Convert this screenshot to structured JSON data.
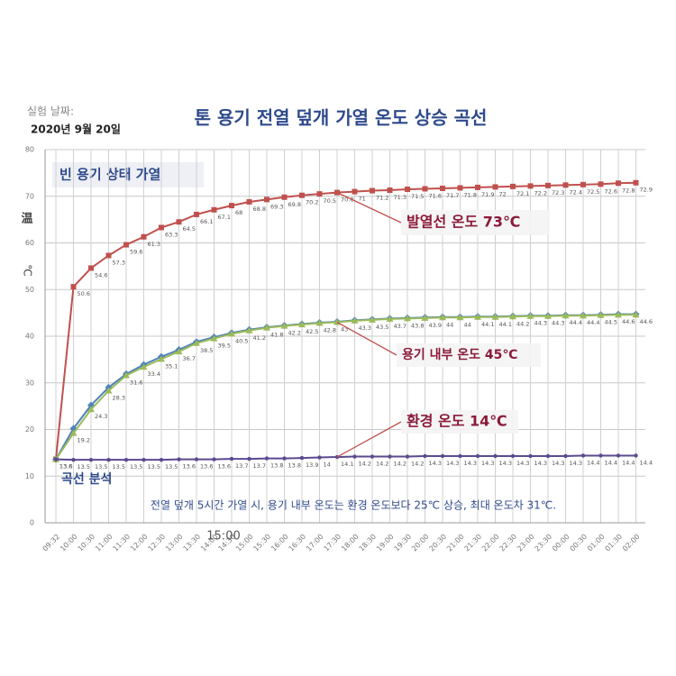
{
  "chart_data": {
    "type": "line",
    "date_label": "실험 날짜:",
    "date": "2020년 9월 20일",
    "title": "톤 용기 전열 덮개 가열 온도 상승 곡선",
    "subtitle": "빈 용기 상태 가열",
    "y_label_top": "温",
    "y_label_unit": "℃",
    "analysis_title": "곡선 분석",
    "analysis": "전열 덮개 5시간 가열 시, 용기 내부 온도는 환경 온도보다 25℃ 상승, 최대 온도차 31℃.",
    "overlay_time": "15:00",
    "categories": [
      "09:32",
      "10:00",
      "10:30",
      "11:00",
      "11:30",
      "12:00",
      "12:30",
      "13:00",
      "13:30",
      "14:00",
      "14:30",
      "15:00",
      "15:30",
      "16:00",
      "16:30",
      "17:00",
      "17:30",
      "18:00",
      "18:30",
      "19:00",
      "19:30",
      "20:00",
      "20:30",
      "21:00",
      "21:30",
      "22:00",
      "22:30",
      "23:00",
      "23:30",
      "00:00",
      "00:30",
      "01:00",
      "01:30",
      "02:00"
    ],
    "ylim": [
      0,
      80
    ],
    "yticks": [
      0,
      10,
      20,
      30,
      40,
      50,
      60,
      70,
      80
    ],
    "grid": true,
    "series": [
      {
        "color": "#c0504d",
        "marker": "square",
        "labels": true,
        "values": [
          13.6,
          50.6,
          54.6,
          57.3,
          59.6,
          61.3,
          63.3,
          64.5,
          66.1,
          67.1,
          68,
          68.8,
          69.3,
          69.8,
          70.2,
          70.5,
          70.8,
          71,
          71.2,
          71.3,
          71.5,
          71.6,
          71.7,
          71.8,
          71.9,
          72,
          72.1,
          72.2,
          72.3,
          72.4,
          72.5,
          72.6,
          72.8,
          72.9
        ]
      },
      {
        "color": "#4f81bd",
        "marker": "diamond",
        "labels": false,
        "values": [
          13.6,
          20.2,
          25.2,
          29,
          31.9,
          33.9,
          35.6,
          37.1,
          38.8,
          39.8,
          40.7,
          41.4,
          41.9,
          42.3,
          42.6,
          42.9,
          43.1,
          43.4,
          43.6,
          43.8,
          43.9,
          44,
          44.1,
          44.1,
          44.2,
          44.2,
          44.3,
          44.4,
          44.4,
          44.5,
          44.5,
          44.6,
          44.7,
          44.7
        ]
      },
      {
        "color": "#9bbb59",
        "marker": "triangle",
        "labels": true,
        "values": [
          13.6,
          19.2,
          24.3,
          28.3,
          31.6,
          33.4,
          35.1,
          36.7,
          38.5,
          39.5,
          40.5,
          41.2,
          41.8,
          42.2,
          42.5,
          42.8,
          43,
          43.3,
          43.5,
          43.7,
          43.8,
          43.9,
          44,
          44,
          44.1,
          44.1,
          44.2,
          44.3,
          44.3,
          44.4,
          44.4,
          44.5,
          44.6,
          44.6
        ]
      },
      {
        "color": "#5b4a8f",
        "marker": "circle",
        "labels": true,
        "values": [
          13.6,
          13.5,
          13.5,
          13.5,
          13.5,
          13.5,
          13.5,
          13.6,
          13.6,
          13.6,
          13.7,
          13.7,
          13.8,
          13.8,
          13.9,
          14,
          14.1,
          14.2,
          14.2,
          14.2,
          14.2,
          14.3,
          14.3,
          14.3,
          14.3,
          14.3,
          14.3,
          14.3,
          14.3,
          14.3,
          14.4,
          14.4,
          14.4,
          14.4
        ]
      }
    ],
    "annotations": [
      {
        "text": "발열선 온도 73℃",
        "series": 0,
        "index": 16
      },
      {
        "text": "용기 내부 온도 45℃",
        "series": 2,
        "index": 16
      },
      {
        "text": "환경 온도 14℃",
        "series": 3,
        "index": 16
      }
    ]
  }
}
